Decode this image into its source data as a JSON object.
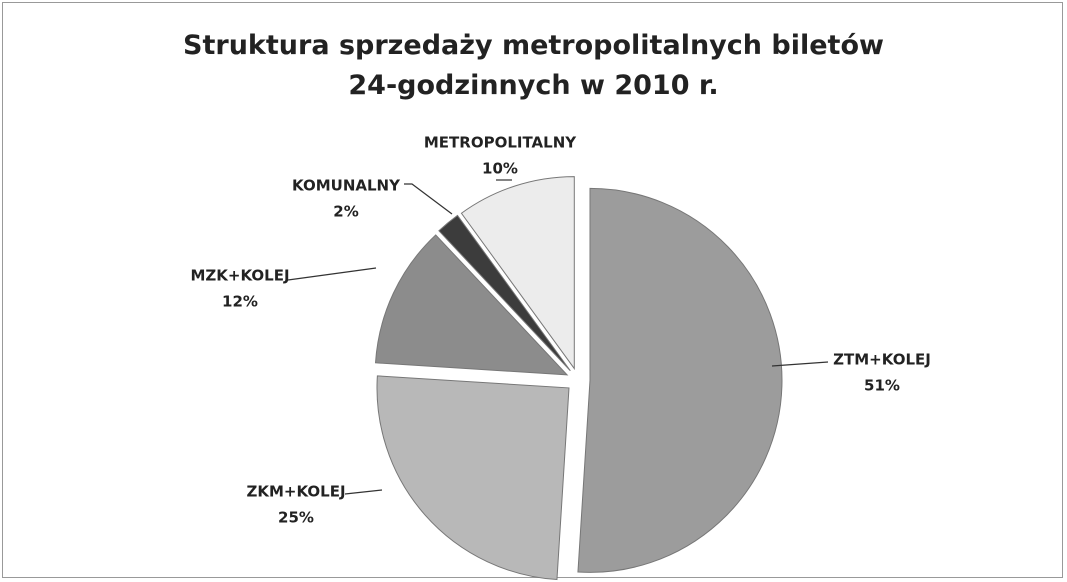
{
  "chart_data": {
    "type": "pie",
    "title": "Struktura sprzedaży metropolitalnych biletów\n24-godzinnych w 2010 r.",
    "categories": [
      "ZTM+KOLEJ",
      "ZKM+KOLEJ",
      "MZK+KOLEJ",
      "KOMUNALNY",
      "METROPOLITALNY"
    ],
    "values": [
      51,
      25,
      12,
      2,
      10
    ],
    "value_labels": [
      "51%",
      "25%",
      "12%",
      "2%",
      "10%"
    ],
    "colors": [
      "#9c9c9c",
      "#b8b8b8",
      "#8c8c8c",
      "#3c3c3c",
      "#ececec"
    ]
  }
}
